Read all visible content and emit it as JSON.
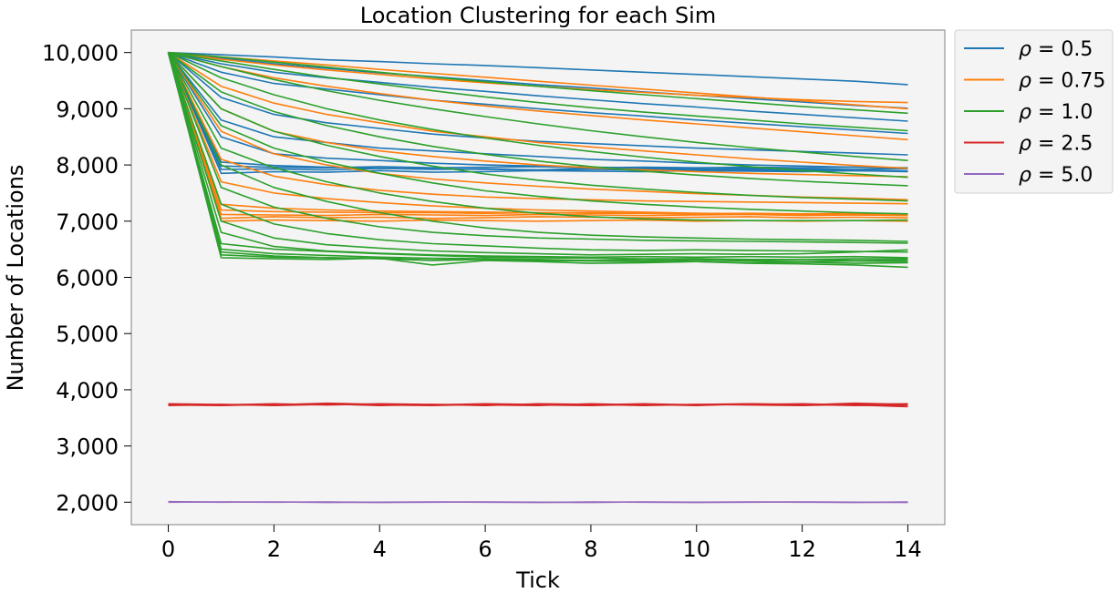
{
  "chart_data": {
    "type": "line",
    "title": "Location Clustering for each Sim",
    "xlabel": "Tick",
    "ylabel": "Number of Locations",
    "xlim": [
      -0.7,
      14.7
    ],
    "ylim": [
      1600,
      10400
    ],
    "xticks": [
      0,
      2,
      4,
      6,
      8,
      10,
      12,
      14
    ],
    "xtick_labels": [
      "0",
      "2",
      "4",
      "6",
      "8",
      "10",
      "12",
      "14"
    ],
    "yticks": [
      2000,
      3000,
      4000,
      5000,
      6000,
      7000,
      8000,
      9000,
      10000
    ],
    "ytick_labels": [
      "2,000",
      "3,000",
      "4,000",
      "5,000",
      "6,000",
      "7,000",
      "8,000",
      "9,000",
      "10,000"
    ],
    "grid": false,
    "background": "#f4f4f4",
    "legend_position": "outside-top-right",
    "x": [
      0,
      1,
      2,
      3,
      4,
      5,
      6,
      7,
      8,
      9,
      10,
      11,
      12,
      13,
      14
    ],
    "series": [
      {
        "name": "ρ = 0.5",
        "color": "#1f77b4",
        "values": [
          10000,
          7850,
          7880,
          7870,
          7900,
          7870,
          7880,
          7900,
          7890,
          7880,
          7900,
          7890,
          7880,
          7900,
          7890
        ]
      },
      {
        "name": "ρ = 0.5",
        "color": "#1f77b4",
        "values": [
          10000,
          7920,
          7930,
          7910,
          7940,
          7920,
          7930,
          7910,
          7940,
          7930,
          7920,
          7940,
          7930,
          7920,
          7930
        ]
      },
      {
        "name": "ρ = 0.5",
        "color": "#1f77b4",
        "values": [
          10000,
          7980,
          7960,
          7950,
          7970,
          7950,
          7960,
          7970,
          7950,
          7960,
          7950,
          7960,
          7950,
          7960,
          7950
        ]
      },
      {
        "name": "ρ = 0.5",
        "color": "#1f77b4",
        "values": [
          10000,
          8050,
          7990,
          7960,
          7940,
          7930,
          7920,
          7910,
          7920,
          7910,
          7900,
          7910,
          7900,
          7900,
          7890
        ]
      },
      {
        "name": "ρ = 0.5",
        "color": "#1f77b4",
        "values": [
          10000,
          8500,
          8200,
          8120,
          8080,
          8030,
          8000,
          7980,
          7960,
          7950,
          7930,
          7920,
          7910,
          7900,
          7880
        ]
      },
      {
        "name": "ρ = 0.5",
        "color": "#1f77b4",
        "values": [
          10000,
          8800,
          8500,
          8400,
          8300,
          8250,
          8200,
          8150,
          8100,
          8070,
          8030,
          8000,
          7980,
          7960,
          7940
        ]
      },
      {
        "name": "ρ = 0.5",
        "color": "#1f77b4",
        "values": [
          10000,
          9200,
          8900,
          8750,
          8650,
          8550,
          8480,
          8420,
          8380,
          8340,
          8300,
          8270,
          8240,
          8210,
          8180
        ]
      },
      {
        "name": "ρ = 0.5",
        "color": "#1f77b4",
        "values": [
          10000,
          9650,
          9450,
          9350,
          9250,
          9150,
          9080,
          9000,
          8930,
          8870,
          8800,
          8740,
          8680,
          8620,
          8560
        ]
      },
      {
        "name": "ρ = 0.5",
        "color": "#1f77b4",
        "values": [
          10000,
          9800,
          9650,
          9550,
          9470,
          9380,
          9310,
          9230,
          9160,
          9090,
          9030,
          8960,
          8900,
          8840,
          8780
        ]
      },
      {
        "name": "ρ = 0.5",
        "color": "#1f77b4",
        "values": [
          10000,
          9900,
          9800,
          9720,
          9640,
          9570,
          9500,
          9430,
          9370,
          9300,
          9240,
          9180,
          9120,
          9060,
          9010
        ]
      },
      {
        "name": "ρ = 0.5",
        "color": "#1f77b4",
        "values": [
          10000,
          9960,
          9920,
          9870,
          9840,
          9800,
          9770,
          9730,
          9690,
          9650,
          9610,
          9570,
          9530,
          9490,
          9430
        ]
      },
      {
        "name": "ρ = 0.75",
        "color": "#ff7f0e",
        "values": [
          10000,
          7050,
          7080,
          7060,
          7070,
          7050,
          7060,
          7080,
          7070,
          7060,
          7070,
          7080,
          7060,
          7070,
          7060
        ]
      },
      {
        "name": "ρ = 0.75",
        "color": "#ff7f0e",
        "values": [
          10000,
          7120,
          7110,
          7100,
          7120,
          7110,
          7100,
          7120,
          7110,
          7100,
          7110,
          7120,
          7100,
          7110,
          7100
        ]
      },
      {
        "name": "ρ = 0.75",
        "color": "#ff7f0e",
        "values": [
          10000,
          7200,
          7170,
          7160,
          7150,
          7150,
          7140,
          7150,
          7140,
          7140,
          7130,
          7140,
          7130,
          7140,
          7130
        ]
      },
      {
        "name": "ρ = 0.75",
        "color": "#ff7f0e",
        "values": [
          10000,
          7000,
          7020,
          7010,
          7000,
          7020,
          7010,
          7000,
          7010,
          7020,
          7000,
          7010,
          7000,
          7010,
          7000
        ]
      },
      {
        "name": "ρ = 0.75",
        "color": "#ff7f0e",
        "values": [
          10000,
          7300,
          7230,
          7200,
          7180,
          7170,
          7160,
          7150,
          7150,
          7140,
          7140,
          7130,
          7130,
          7120,
          7120
        ]
      },
      {
        "name": "ρ = 0.75",
        "color": "#ff7f0e",
        "values": [
          10000,
          7700,
          7500,
          7400,
          7330,
          7270,
          7230,
          7200,
          7180,
          7160,
          7140,
          7130,
          7120,
          7110,
          7100
        ]
      },
      {
        "name": "ρ = 0.75",
        "color": "#ff7f0e",
        "values": [
          10000,
          8100,
          7800,
          7650,
          7550,
          7480,
          7430,
          7400,
          7380,
          7360,
          7350,
          7340,
          7330,
          7320,
          7310
        ]
      },
      {
        "name": "ρ = 0.75",
        "color": "#ff7f0e",
        "values": [
          10000,
          8600,
          8200,
          8000,
          7850,
          7750,
          7680,
          7620,
          7570,
          7530,
          7490,
          7460,
          7430,
          7410,
          7380
        ]
      },
      {
        "name": "ρ = 0.75",
        "color": "#ff7f0e",
        "values": [
          10000,
          9000,
          8600,
          8400,
          8250,
          8150,
          8070,
          8000,
          7950,
          7910,
          7880,
          7850,
          7830,
          7810,
          7790
        ]
      },
      {
        "name": "ρ = 0.75",
        "color": "#ff7f0e",
        "values": [
          10000,
          9400,
          9100,
          8900,
          8750,
          8600,
          8500,
          8400,
          8320,
          8250,
          8180,
          8110,
          8050,
          7990,
          7940
        ]
      },
      {
        "name": "ρ = 0.75",
        "color": "#ff7f0e",
        "values": [
          10000,
          9750,
          9550,
          9400,
          9270,
          9150,
          9050,
          8960,
          8880,
          8800,
          8730,
          8660,
          8590,
          8520,
          8450
        ]
      },
      {
        "name": "ρ = 0.75",
        "color": "#ff7f0e",
        "values": [
          10000,
          9880,
          9780,
          9690,
          9610,
          9530,
          9460,
          9400,
          9340,
          9290,
          9240,
          9200,
          9160,
          9130,
          9110
        ]
      },
      {
        "name": "ρ = 0.75",
        "color": "#ff7f0e",
        "values": [
          10000,
          9920,
          9850,
          9780,
          9700,
          9630,
          9560,
          9490,
          9420,
          9350,
          9280,
          9210,
          9140,
          9070,
          9000
        ]
      },
      {
        "name": "ρ = 1.0",
        "color": "#2ca02c",
        "values": [
          10000,
          6350,
          6330,
          6320,
          6340,
          6310,
          6330,
          6320,
          6300,
          6320,
          6330,
          6310,
          6320,
          6300,
          6310
        ]
      },
      {
        "name": "ρ = 1.0",
        "color": "#2ca02c",
        "values": [
          10000,
          6400,
          6360,
          6350,
          6330,
          6300,
          6320,
          6290,
          6300,
          6290,
          6310,
          6290,
          6280,
          6290,
          6280
        ]
      },
      {
        "name": "ρ = 1.0",
        "color": "#2ca02c",
        "values": [
          10000,
          6450,
          6380,
          6350,
          6340,
          6220,
          6300,
          6280,
          6250,
          6260,
          6280,
          6260,
          6270,
          6250,
          6260
        ]
      },
      {
        "name": "ρ = 1.0",
        "color": "#2ca02c",
        "values": [
          10000,
          6500,
          6420,
          6390,
          6360,
          6340,
          6330,
          6310,
          6290,
          6280,
          6280,
          6250,
          6240,
          6220,
          6180
        ]
      },
      {
        "name": "ρ = 1.0",
        "color": "#2ca02c",
        "values": [
          10000,
          6600,
          6500,
          6460,
          6420,
          6390,
          6360,
          6350,
          6340,
          6330,
          6330,
          6320,
          6320,
          6330,
          6330
        ]
      },
      {
        "name": "ρ = 1.0",
        "color": "#2ca02c",
        "values": [
          10000,
          6800,
          6550,
          6470,
          6430,
          6400,
          6380,
          6370,
          6360,
          6370,
          6360,
          6370,
          6360,
          6370,
          6350
        ]
      },
      {
        "name": "ρ = 1.0",
        "color": "#2ca02c",
        "values": [
          10000,
          7000,
          6700,
          6580,
          6520,
          6470,
          6440,
          6420,
          6400,
          6410,
          6420,
          6410,
          6420,
          6450,
          6490
        ]
      },
      {
        "name": "ρ = 1.0",
        "color": "#2ca02c",
        "values": [
          10000,
          7300,
          6950,
          6780,
          6670,
          6600,
          6560,
          6520,
          6490,
          6480,
          6490,
          6480,
          6470,
          6460,
          6450
        ]
      },
      {
        "name": "ρ = 1.0",
        "color": "#2ca02c",
        "values": [
          10000,
          7600,
          7250,
          7050,
          6900,
          6800,
          6740,
          6700,
          6680,
          6660,
          6650,
          6640,
          6630,
          6620,
          6610
        ]
      },
      {
        "name": "ρ = 1.0",
        "color": "#2ca02c",
        "values": [
          10000,
          8000,
          7600,
          7350,
          7150,
          7000,
          6880,
          6800,
          6750,
          6720,
          6700,
          6680,
          6670,
          6660,
          6640
        ]
      },
      {
        "name": "ρ = 1.0",
        "color": "#2ca02c",
        "values": [
          10000,
          8300,
          7950,
          7700,
          7500,
          7350,
          7230,
          7140,
          7080,
          7040,
          7020,
          7010,
          7010,
          7010,
          7020
        ]
      },
      {
        "name": "ρ = 1.0",
        "color": "#2ca02c",
        "values": [
          10000,
          8700,
          8300,
          8050,
          7850,
          7680,
          7540,
          7440,
          7360,
          7300,
          7250,
          7210,
          7180,
          7150,
          7130
        ]
      },
      {
        "name": "ρ = 1.0",
        "color": "#2ca02c",
        "values": [
          10000,
          9000,
          8600,
          8350,
          8150,
          7980,
          7840,
          7730,
          7640,
          7570,
          7510,
          7460,
          7420,
          7390,
          7360
        ]
      },
      {
        "name": "ρ = 1.0",
        "color": "#2ca02c",
        "values": [
          10000,
          9300,
          8950,
          8700,
          8500,
          8330,
          8190,
          8070,
          7970,
          7890,
          7820,
          7760,
          7710,
          7670,
          7630
        ]
      },
      {
        "name": "ρ = 1.0",
        "color": "#2ca02c",
        "values": [
          10000,
          9550,
          9250,
          9000,
          8800,
          8630,
          8480,
          8350,
          8240,
          8140,
          8050,
          7970,
          7900,
          7840,
          7780
        ]
      },
      {
        "name": "ρ = 1.0",
        "color": "#2ca02c",
        "values": [
          10000,
          9750,
          9520,
          9320,
          9150,
          9000,
          8860,
          8730,
          8610,
          8500,
          8400,
          8310,
          8230,
          8150,
          8080
        ]
      },
      {
        "name": "ρ = 1.0",
        "color": "#2ca02c",
        "values": [
          10000,
          9850,
          9700,
          9560,
          9440,
          9320,
          9210,
          9110,
          9020,
          8940,
          8870,
          8800,
          8730,
          8670,
          8610
        ]
      },
      {
        "name": "ρ = 1.0",
        "color": "#2ca02c",
        "values": [
          10000,
          9920,
          9830,
          9740,
          9650,
          9560,
          9480,
          9400,
          9320,
          9250,
          9180,
          9110,
          9040,
          8980,
          8920
        ]
      },
      {
        "name": "ρ = 2.5",
        "color": "#d62728",
        "values": [
          3730,
          3720,
          3740,
          3750,
          3720,
          3740,
          3730,
          3720,
          3750,
          3730,
          3740,
          3750,
          3730,
          3760,
          3740
        ]
      },
      {
        "name": "ρ = 2.5",
        "color": "#d62728",
        "values": [
          3750,
          3740,
          3730,
          3760,
          3740,
          3730,
          3750,
          3740,
          3730,
          3750,
          3730,
          3740,
          3750,
          3730,
          3700
        ]
      },
      {
        "name": "ρ = 2.5",
        "color": "#d62728",
        "values": [
          3740,
          3730,
          3750,
          3730,
          3750,
          3740,
          3720,
          3750,
          3740,
          3720,
          3740,
          3730,
          3720,
          3740,
          3750
        ]
      },
      {
        "name": "ρ = 2.5",
        "color": "#d62728",
        "values": [
          3720,
          3740,
          3720,
          3740,
          3730,
          3720,
          3740,
          3730,
          3720,
          3740,
          3720,
          3750,
          3740,
          3720,
          3730
        ]
      },
      {
        "name": "ρ = 5.0",
        "color": "#9467bd",
        "values": [
          2010,
          2000,
          2005,
          1995,
          2000,
          2005,
          2000,
          1995,
          2005,
          2000,
          1995,
          2000,
          2005,
          2000,
          1995
        ]
      },
      {
        "name": "ρ = 5.0",
        "color": "#9467bd",
        "values": [
          2000,
          2005,
          2000,
          2005,
          1995,
          2000,
          2005,
          2000,
          1995,
          2005,
          2000,
          2005,
          2000,
          1995,
          2005
        ]
      }
    ],
    "legend": [
      {
        "rho": "ρ",
        "value": " = 0.5",
        "color": "#1f77b4"
      },
      {
        "rho": "ρ",
        "value": " = 0.75",
        "color": "#ff7f0e"
      },
      {
        "rho": "ρ",
        "value": " = 1.0",
        "color": "#2ca02c"
      },
      {
        "rho": "ρ",
        "value": " = 2.5",
        "color": "#d62728"
      },
      {
        "rho": "ρ",
        "value": " = 5.0",
        "color": "#9467bd"
      }
    ]
  }
}
